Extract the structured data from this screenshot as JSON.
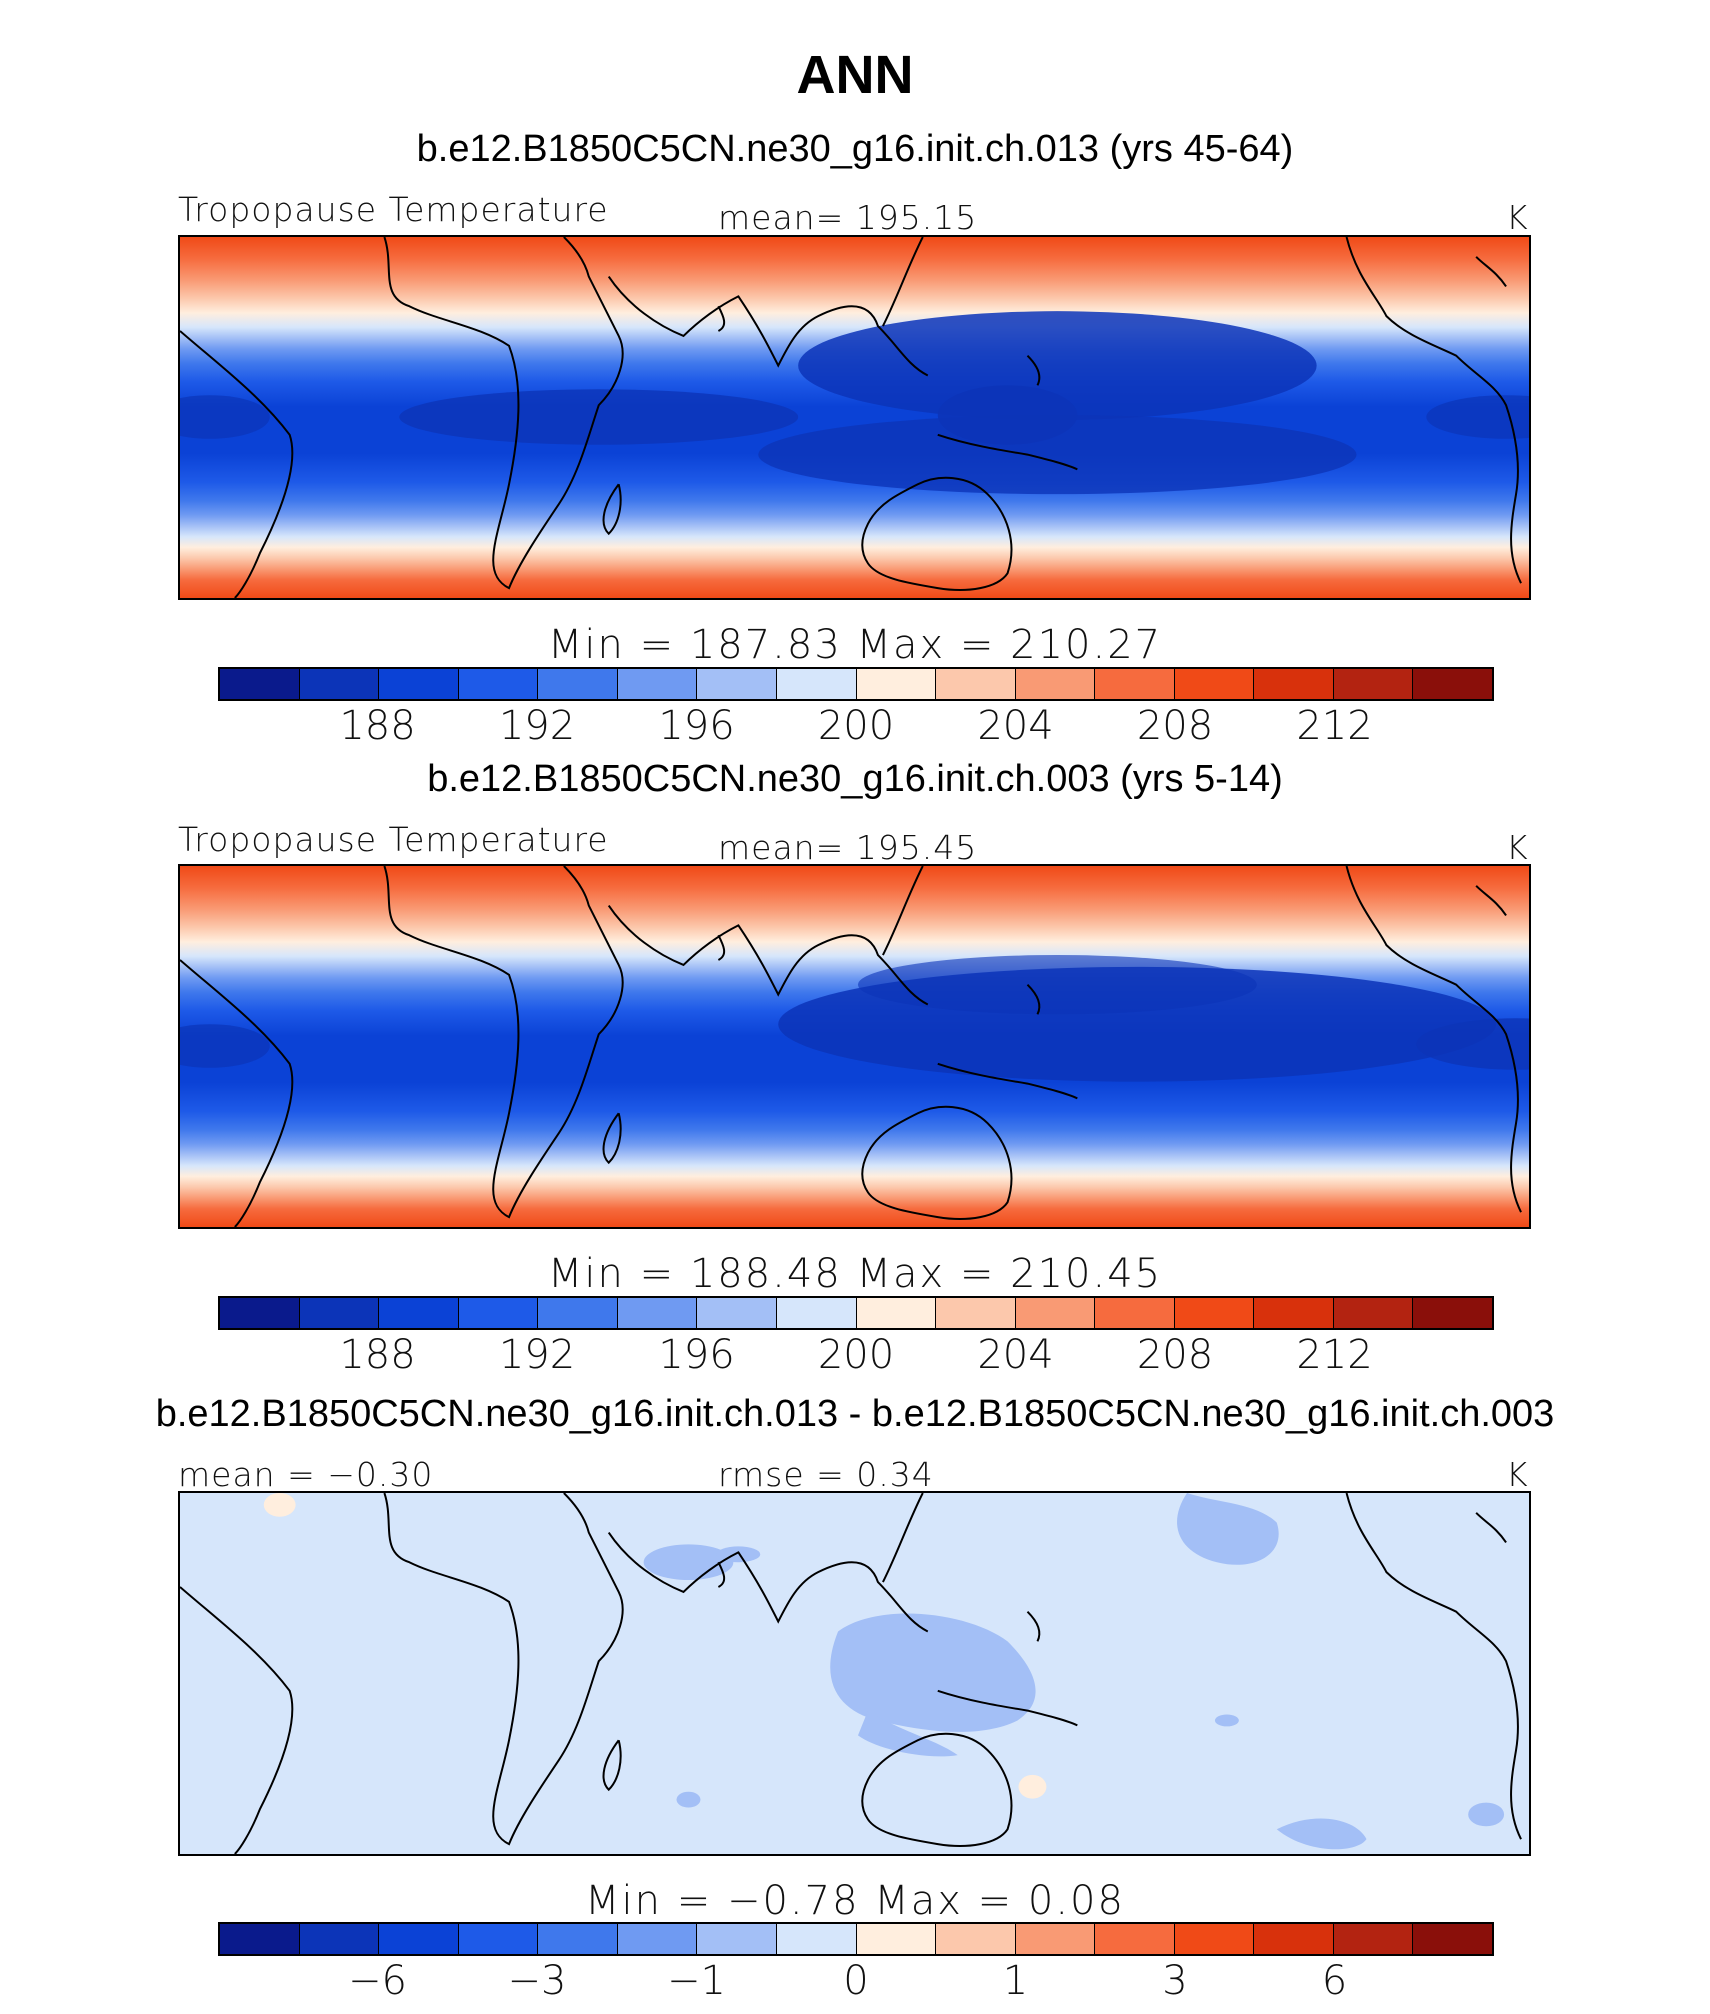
{
  "title": "ANN",
  "panels": [
    {
      "case": "b.e12.B1850C5CN.ne30_g16.init.ch.013 (yrs 45-64)",
      "left_label": "Tropopause Temperature",
      "center_label": "mean= 195.15",
      "units": "K",
      "minmax": "Min = 187.83 Max = 210.27"
    },
    {
      "case": "b.e12.B1850C5CN.ne30_g16.init.ch.003 (yrs 5-14)",
      "left_label": "Tropopause Temperature",
      "center_label": "mean= 195.45",
      "units": "K",
      "minmax": "Min = 188.48 Max = 210.45"
    },
    {
      "case": "b.e12.B1850C5CN.ne30_g16.init.ch.013 - b.e12.B1850C5CN.ne30_g16.init.ch.003",
      "left_label": "mean = −0.30",
      "center_label": "rmse = 0.34",
      "units": "K",
      "minmax": "Min = −0.78 Max = 0.08"
    }
  ],
  "colorbar_colors": [
    "#0a1a8c",
    "#0c34b8",
    "#0b42d6",
    "#1e5ae8",
    "#3f78ec",
    "#6f9af2",
    "#a3bff6",
    "#d6e6fb",
    "#ffeede",
    "#fcc8ac",
    "#f99a74",
    "#f66b3e",
    "#f04a17",
    "#d8310c",
    "#b32311",
    "#8a0f0a"
  ],
  "colorbar_ticks_abs": [
    "188",
    "192",
    "196",
    "200",
    "204",
    "208",
    "212"
  ],
  "colorbar_ticks_diff": [
    "−6",
    "−3",
    "−1",
    "0",
    "1",
    "3",
    "6"
  ]
}
